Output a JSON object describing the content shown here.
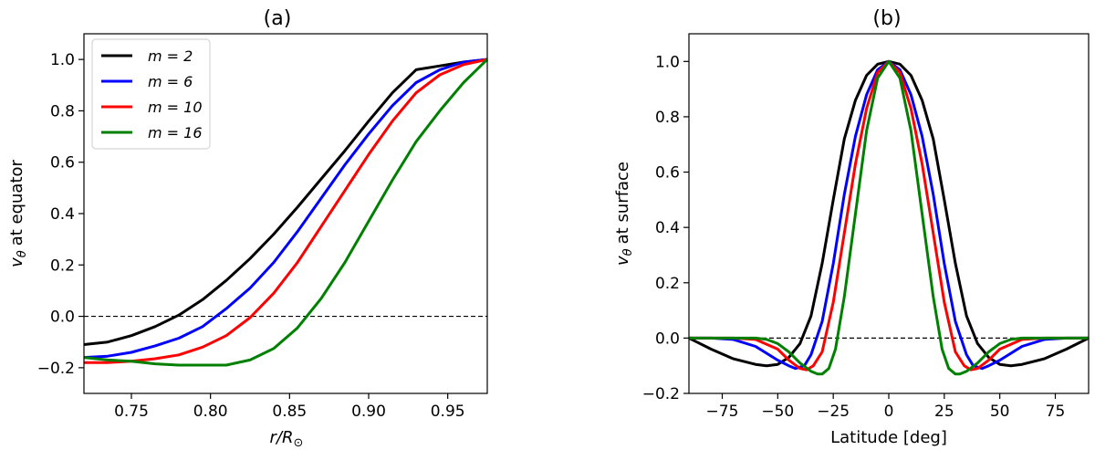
{
  "chart_data": [
    {
      "type": "line",
      "title": "(a)",
      "xlabel": "r/R",
      "xlabel_sub": "⊙",
      "ylabel": "at equator",
      "ylabel_symbol": "v",
      "ylabel_sub": "θ",
      "xlim": [
        0.72,
        0.975
      ],
      "ylim": [
        -0.3,
        1.1
      ],
      "xticks": [
        0.75,
        0.8,
        0.85,
        0.9,
        0.95
      ],
      "xtick_labels": [
        "0.75",
        "0.80",
        "0.85",
        "0.90",
        "0.95"
      ],
      "yticks": [
        -0.2,
        0.0,
        0.2,
        0.4,
        0.6,
        0.8,
        1.0
      ],
      "ytick_labels": [
        "−0.2",
        "0.0",
        "0.2",
        "0.4",
        "0.6",
        "0.8",
        "1.0"
      ],
      "reference_line_y": 0,
      "legend": {
        "position": "top-left",
        "entries": [
          "m = 2",
          "m = 6",
          "m = 10",
          "m = 16"
        ]
      },
      "series": [
        {
          "name": "m = 2",
          "color": "#000000",
          "x": [
            0.72,
            0.735,
            0.75,
            0.765,
            0.78,
            0.795,
            0.81,
            0.825,
            0.84,
            0.855,
            0.87,
            0.885,
            0.9,
            0.915,
            0.93,
            0.945,
            0.96,
            0.975
          ],
          "y": [
            -0.11,
            -0.1,
            -0.075,
            -0.04,
            0.005,
            0.065,
            0.14,
            0.225,
            0.32,
            0.425,
            0.535,
            0.645,
            0.76,
            0.87,
            0.96,
            0.975,
            0.99,
            1.0
          ]
        },
        {
          "name": "m = 6",
          "color": "#0000ff",
          "x": [
            0.72,
            0.735,
            0.75,
            0.765,
            0.78,
            0.795,
            0.81,
            0.825,
            0.84,
            0.855,
            0.87,
            0.885,
            0.9,
            0.915,
            0.93,
            0.945,
            0.96,
            0.975
          ],
          "y": [
            -0.16,
            -0.155,
            -0.14,
            -0.115,
            -0.085,
            -0.04,
            0.03,
            0.11,
            0.21,
            0.33,
            0.46,
            0.59,
            0.71,
            0.82,
            0.91,
            0.96,
            0.99,
            1.0
          ]
        },
        {
          "name": "m = 10",
          "color": "#ff0000",
          "x": [
            0.72,
            0.735,
            0.75,
            0.765,
            0.78,
            0.795,
            0.81,
            0.825,
            0.84,
            0.855,
            0.87,
            0.885,
            0.9,
            0.915,
            0.93,
            0.945,
            0.96,
            0.975
          ],
          "y": [
            -0.18,
            -0.18,
            -0.175,
            -0.165,
            -0.15,
            -0.12,
            -0.075,
            -0.005,
            0.09,
            0.21,
            0.35,
            0.49,
            0.63,
            0.76,
            0.87,
            0.94,
            0.98,
            1.0
          ]
        },
        {
          "name": "m = 16",
          "color": "#008000",
          "x": [
            0.72,
            0.735,
            0.75,
            0.765,
            0.78,
            0.795,
            0.81,
            0.825,
            0.84,
            0.855,
            0.87,
            0.885,
            0.9,
            0.915,
            0.93,
            0.945,
            0.96,
            0.975
          ],
          "y": [
            -0.16,
            -0.17,
            -0.175,
            -0.185,
            -0.19,
            -0.19,
            -0.19,
            -0.17,
            -0.125,
            -0.045,
            0.07,
            0.21,
            0.37,
            0.53,
            0.68,
            0.8,
            0.91,
            1.0
          ]
        }
      ]
    },
    {
      "type": "line",
      "title": "(b)",
      "xlabel": "Latitude [deg]",
      "ylabel": "at surface",
      "ylabel_symbol": "v",
      "ylabel_sub": "θ",
      "xlim": [
        -90,
        90
      ],
      "ylim": [
        -0.2,
        1.1
      ],
      "xticks": [
        -75,
        -50,
        -25,
        0,
        25,
        50,
        75
      ],
      "xtick_labels": [
        "−75",
        "−50",
        "−25",
        "0",
        "25",
        "50",
        "75"
      ],
      "yticks": [
        -0.2,
        0.0,
        0.2,
        0.4,
        0.6,
        0.8,
        1.0
      ],
      "ytick_labels": [
        "−0.2",
        "0.0",
        "0.2",
        "0.4",
        "0.6",
        "0.8",
        "1.0"
      ],
      "reference_line_y": 0,
      "series": [
        {
          "name": "m = 2",
          "color": "#000000",
          "x": [
            -90,
            -80,
            -70,
            -60,
            -55,
            -50,
            -45,
            -40,
            -35,
            -30,
            -25,
            -20,
            -15,
            -10,
            -5,
            0,
            5,
            10,
            15,
            20,
            25,
            30,
            35,
            40,
            45,
            50,
            55,
            60,
            70,
            80,
            90
          ],
          "y": [
            0,
            -0.04,
            -0.075,
            -0.095,
            -0.1,
            -0.095,
            -0.07,
            -0.02,
            0.08,
            0.27,
            0.5,
            0.72,
            0.86,
            0.95,
            0.99,
            1.0,
            0.99,
            0.95,
            0.86,
            0.72,
            0.5,
            0.27,
            0.08,
            -0.02,
            -0.07,
            -0.095,
            -0.1,
            -0.095,
            -0.075,
            -0.04,
            0
          ]
        },
        {
          "name": "m = 6",
          "color": "#0000ff",
          "x": [
            -90,
            -80,
            -70,
            -60,
            -50,
            -45,
            -42,
            -38,
            -35,
            -30,
            -25,
            -20,
            -15,
            -10,
            -5,
            0,
            5,
            10,
            15,
            20,
            25,
            30,
            35,
            38,
            42,
            45,
            50,
            60,
            70,
            80,
            90
          ],
          "y": [
            0,
            0,
            -0.005,
            -0.03,
            -0.08,
            -0.1,
            -0.11,
            -0.1,
            -0.06,
            0.06,
            0.27,
            0.52,
            0.73,
            0.88,
            0.97,
            1.0,
            0.97,
            0.88,
            0.73,
            0.52,
            0.27,
            0.06,
            -0.06,
            -0.1,
            -0.11,
            -0.1,
            -0.08,
            -0.03,
            -0.005,
            0,
            0
          ]
        },
        {
          "name": "m = 10",
          "color": "#ff0000",
          "x": [
            -90,
            -80,
            -70,
            -60,
            -50,
            -45,
            -40,
            -37,
            -34,
            -30,
            -25,
            -20,
            -15,
            -10,
            -5,
            0,
            5,
            10,
            15,
            20,
            25,
            30,
            34,
            37,
            40,
            45,
            50,
            60,
            70,
            80,
            90
          ],
          "y": [
            0,
            0,
            0,
            -0.005,
            -0.04,
            -0.08,
            -0.11,
            -0.115,
            -0.1,
            -0.05,
            0.13,
            0.38,
            0.63,
            0.83,
            0.96,
            1.0,
            0.96,
            0.83,
            0.63,
            0.38,
            0.13,
            -0.05,
            -0.1,
            -0.115,
            -0.11,
            -0.08,
            -0.04,
            -0.005,
            0,
            0,
            0
          ]
        },
        {
          "name": "m = 16",
          "color": "#008000",
          "x": [
            -90,
            -80,
            -70,
            -60,
            -55,
            -50,
            -45,
            -40,
            -35,
            -32,
            -30,
            -27,
            -24,
            -20,
            -15,
            -10,
            -5,
            0,
            5,
            10,
            15,
            20,
            24,
            27,
            30,
            32,
            35,
            40,
            45,
            50,
            55,
            60,
            70,
            80,
            90
          ],
          "y": [
            0,
            0,
            0,
            0,
            -0.005,
            -0.02,
            -0.05,
            -0.09,
            -0.12,
            -0.13,
            -0.13,
            -0.11,
            -0.04,
            0.15,
            0.45,
            0.75,
            0.94,
            1.0,
            0.94,
            0.75,
            0.45,
            0.15,
            -0.04,
            -0.11,
            -0.13,
            -0.13,
            -0.12,
            -0.09,
            -0.05,
            -0.02,
            -0.005,
            0,
            0,
            0,
            0
          ]
        }
      ]
    }
  ]
}
